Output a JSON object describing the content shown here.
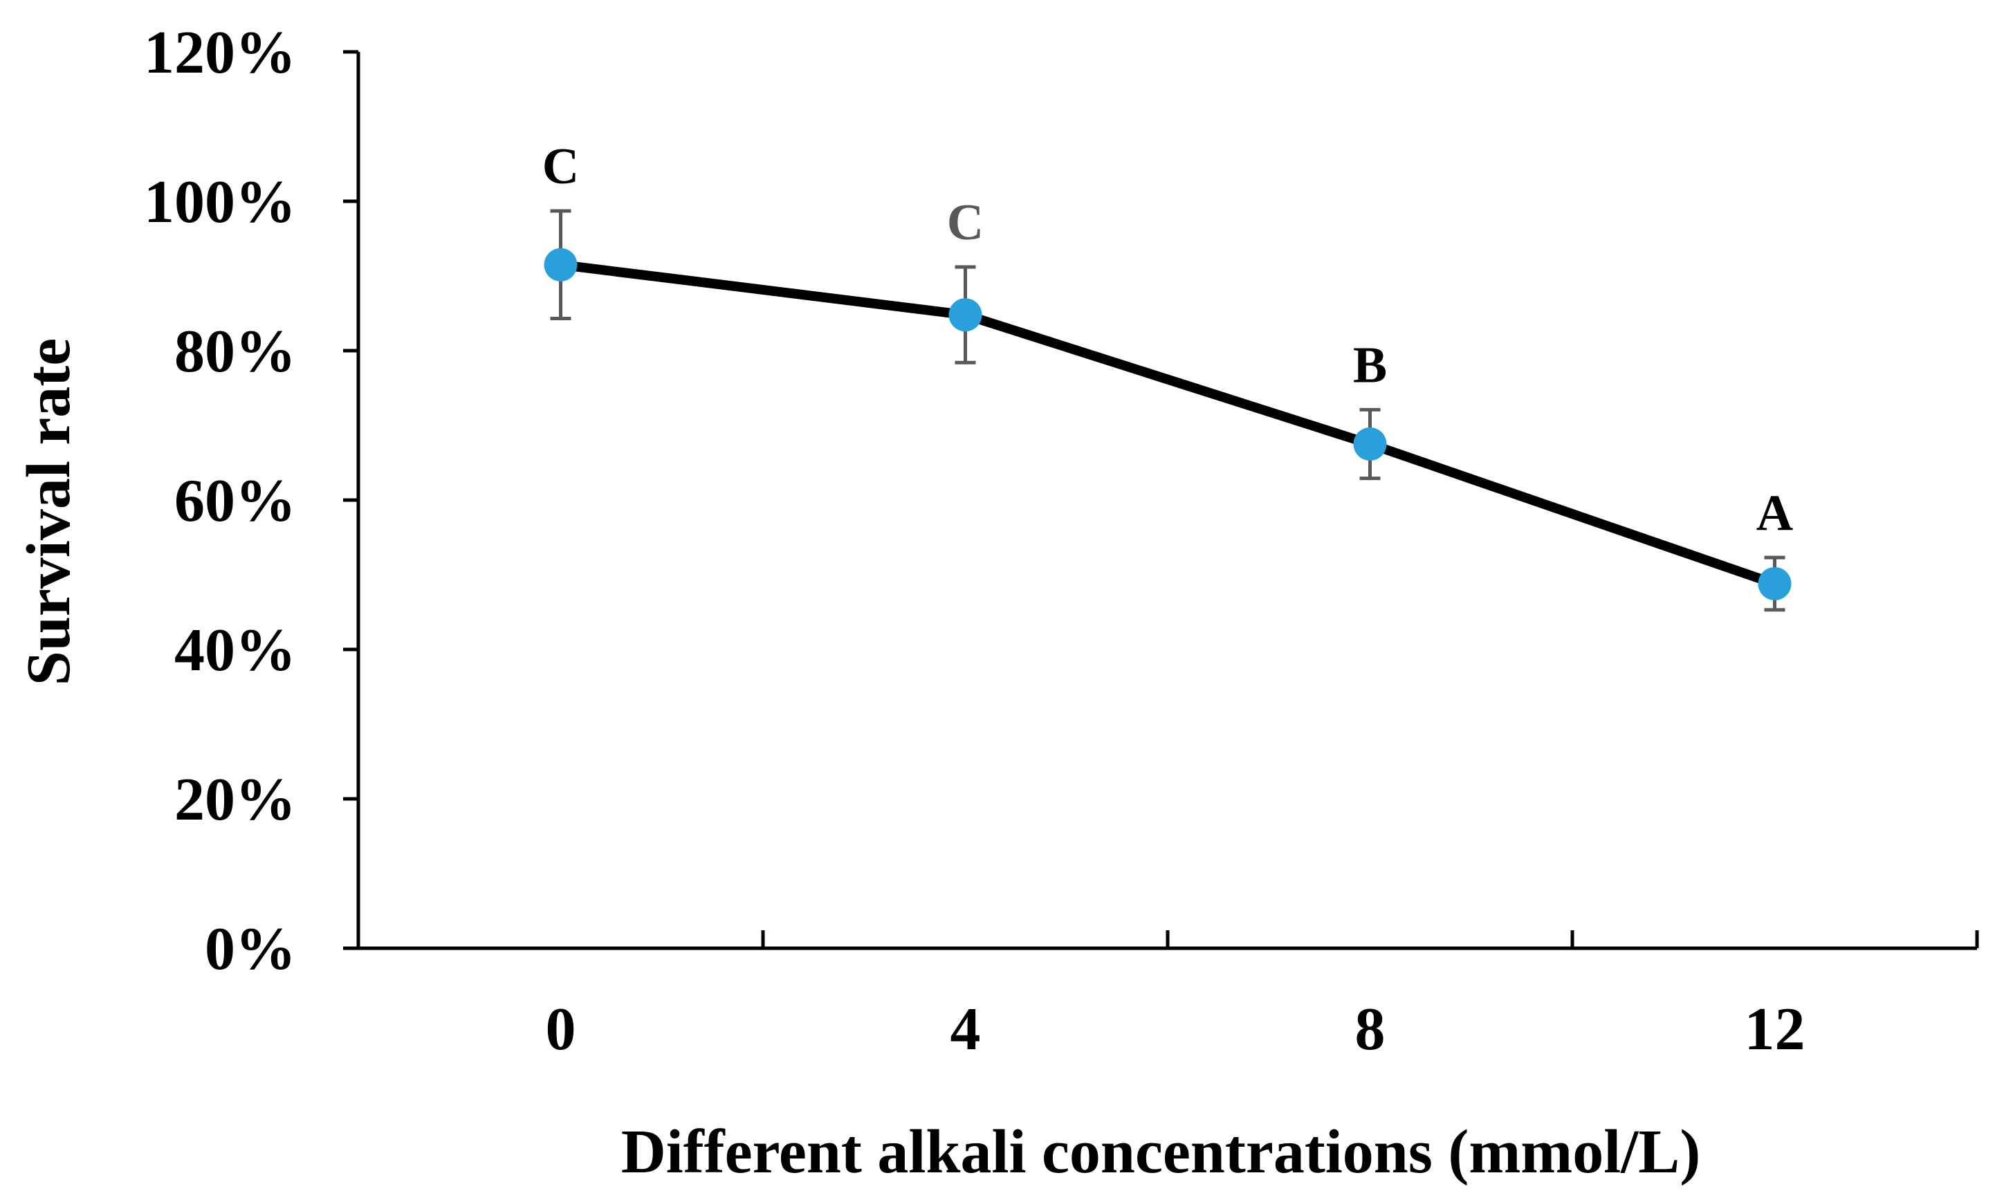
{
  "chart_data": {
    "type": "line",
    "title": "",
    "xlabel": "Different alkali concentrations (mmol/L)",
    "ylabel": "Survival rate",
    "x": [
      0,
      4,
      8,
      12
    ],
    "xlim": [
      -2,
      14
    ],
    "xticks": [
      -2,
      2,
      6,
      10,
      14
    ],
    "x_tick_labels": [
      "0",
      "4",
      "8",
      "12"
    ],
    "ylim": [
      0,
      120
    ],
    "yticks": [
      0,
      20,
      40,
      60,
      80,
      100,
      120
    ],
    "y_tick_labels": [
      "0%",
      "20%",
      "40%",
      "60%",
      "80%",
      "100%",
      "120%"
    ],
    "series": [
      {
        "name": "Survival rate",
        "values": [
          91.5,
          84.8,
          67.5,
          48.8
        ],
        "errors": [
          7.2,
          6.4,
          4.6,
          3.5
        ],
        "significance_letters": [
          "C",
          "C",
          "B",
          "A"
        ]
      }
    ],
    "grid": false,
    "legend": "none",
    "colors": {
      "line": "#000000",
      "marker": "#29a0dc",
      "error_bar": "#595959",
      "axis": "#000000",
      "sig_letters": [
        "#000000",
        "#595959",
        "#000000",
        "#000000"
      ]
    }
  }
}
